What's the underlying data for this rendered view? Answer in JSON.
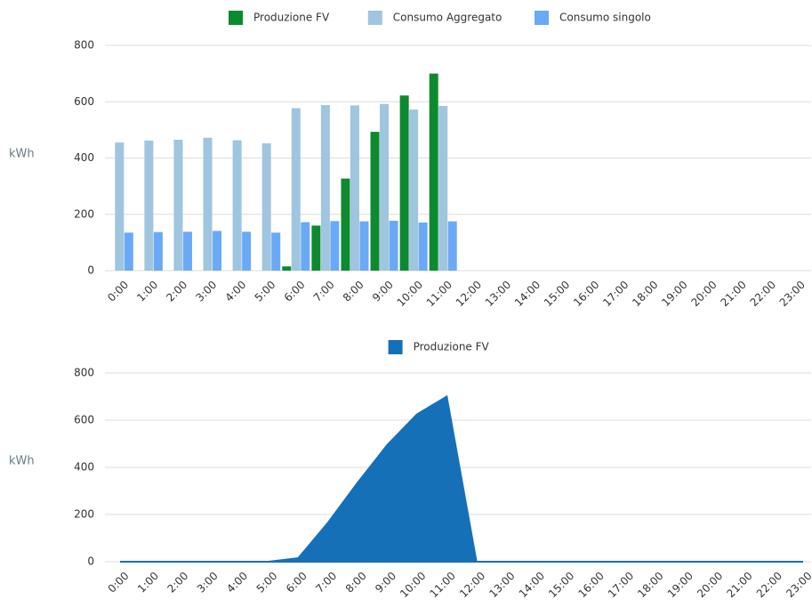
{
  "chart_data": [
    {
      "type": "bar",
      "y_label": "kWh",
      "legend": "top",
      "grid": true,
      "categories": [
        "0:00",
        "1:00",
        "2:00",
        "3:00",
        "4:00",
        "5:00",
        "6:00",
        "7:00",
        "8:00",
        "9:00",
        "10:00",
        "11:00",
        "12:00",
        "13:00",
        "14:00",
        "15:00",
        "16:00",
        "17:00",
        "18:00",
        "19:00",
        "20:00",
        "21:00",
        "22:00",
        "23:00"
      ],
      "ylim": [
        0,
        800
      ],
      "yticks": [
        0,
        200,
        400,
        600,
        800
      ],
      "series": [
        {
          "name": "Produzione FV",
          "color": "#0d8a2f",
          "values": [
            0,
            0,
            0,
            0,
            0,
            0,
            15,
            160,
            327,
            493,
            622,
            700,
            null,
            null,
            null,
            null,
            null,
            null,
            null,
            null,
            null,
            null,
            null,
            null
          ]
        },
        {
          "name": "Consumo Aggregato",
          "color": "#9fc5df",
          "values": [
            455,
            462,
            465,
            472,
            463,
            452,
            577,
            588,
            587,
            592,
            572,
            585,
            null,
            null,
            null,
            null,
            null,
            null,
            null,
            null,
            null,
            null,
            null,
            null
          ]
        },
        {
          "name": "Consumo singolo",
          "color": "#6aa9f6",
          "values": [
            135,
            137,
            138,
            141,
            138,
            135,
            172,
            176,
            175,
            177,
            171,
            175,
            null,
            null,
            null,
            null,
            null,
            null,
            null,
            null,
            null,
            null,
            null,
            null
          ]
        }
      ]
    },
    {
      "type": "area",
      "y_label": "kWh",
      "legend": "top",
      "grid": true,
      "categories": [
        "0:00",
        "1:00",
        "2:00",
        "3:00",
        "4:00",
        "5:00",
        "6:00",
        "7:00",
        "8:00",
        "9:00",
        "10:00",
        "11:00",
        "12:00",
        "13:00",
        "14:00",
        "15:00",
        "16:00",
        "17:00",
        "18:00",
        "19:00",
        "20:00",
        "21:00",
        "22:00",
        "23:00"
      ],
      "ylim": [
        0,
        800
      ],
      "yticks": [
        0,
        200,
        400,
        600,
        800
      ],
      "series": [
        {
          "name": "Produzione FV",
          "color": "#1570b8",
          "values": [
            0,
            0,
            0,
            0,
            0,
            0,
            15,
            165,
            335,
            495,
            625,
            700,
            0,
            0,
            0,
            0,
            0,
            0,
            0,
            0,
            0,
            0,
            0,
            0
          ]
        }
      ]
    }
  ]
}
